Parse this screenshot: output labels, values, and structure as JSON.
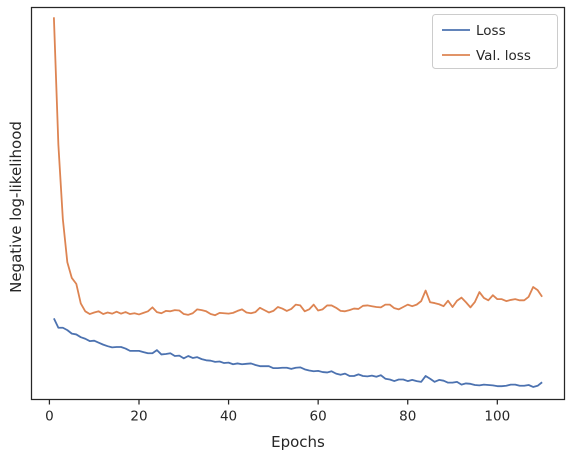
{
  "chart_data": {
    "type": "line",
    "xlabel": "Epochs",
    "ylabel": "Negative log-likelihood",
    "xlim": [
      -4,
      115
    ],
    "ylim": [
      0.0,
      1.0
    ],
    "xticks": [
      0,
      20,
      40,
      60,
      80,
      100
    ],
    "yticks": [],
    "grid": false,
    "legend_position": "top-right",
    "series": [
      {
        "name": "Loss",
        "color": "#4c72b0",
        "x": [
          1,
          2,
          3,
          4,
          5,
          6,
          7,
          8,
          9,
          10,
          11,
          12,
          13,
          14,
          15,
          16,
          17,
          18,
          19,
          20,
          21,
          22,
          23,
          24,
          25,
          26,
          27,
          28,
          29,
          30,
          31,
          32,
          33,
          34,
          35,
          36,
          37,
          38,
          39,
          40,
          41,
          42,
          43,
          44,
          45,
          46,
          47,
          48,
          49,
          50,
          51,
          52,
          53,
          54,
          55,
          56,
          57,
          58,
          59,
          60,
          61,
          62,
          63,
          64,
          65,
          66,
          67,
          68,
          69,
          70,
          71,
          72,
          73,
          74,
          75,
          76,
          77,
          78,
          79,
          80,
          81,
          82,
          83,
          84,
          85,
          86,
          87,
          88,
          89,
          90,
          91,
          92,
          93,
          94,
          95,
          96,
          97,
          98,
          99,
          100,
          101,
          102,
          103,
          104,
          105,
          106,
          107,
          108,
          109,
          110
        ],
        "values": [
          0.207,
          0.183,
          0.183,
          0.177,
          0.168,
          0.166,
          0.159,
          0.155,
          0.149,
          0.15,
          0.145,
          0.14,
          0.136,
          0.133,
          0.134,
          0.134,
          0.13,
          0.124,
          0.124,
          0.124,
          0.121,
          0.118,
          0.118,
          0.126,
          0.115,
          0.116,
          0.118,
          0.111,
          0.112,
          0.105,
          0.111,
          0.106,
          0.108,
          0.103,
          0.1,
          0.099,
          0.096,
          0.097,
          0.093,
          0.094,
          0.09,
          0.092,
          0.09,
          0.091,
          0.092,
          0.088,
          0.085,
          0.085,
          0.085,
          0.08,
          0.08,
          0.081,
          0.081,
          0.078,
          0.081,
          0.082,
          0.077,
          0.074,
          0.072,
          0.073,
          0.07,
          0.069,
          0.072,
          0.066,
          0.063,
          0.066,
          0.06,
          0.06,
          0.064,
          0.06,
          0.059,
          0.061,
          0.058,
          0.062,
          0.053,
          0.051,
          0.047,
          0.051,
          0.051,
          0.047,
          0.05,
          0.047,
          0.045,
          0.06,
          0.053,
          0.045,
          0.05,
          0.048,
          0.043,
          0.043,
          0.045,
          0.038,
          0.041,
          0.04,
          0.037,
          0.036,
          0.038,
          0.037,
          0.036,
          0.034,
          0.034,
          0.035,
          0.038,
          0.038,
          0.035,
          0.035,
          0.037,
          0.032,
          0.035,
          0.044
        ]
      },
      {
        "name": "Val. loss",
        "color": "#dd8452",
        "x": [
          1,
          2,
          3,
          4,
          5,
          6,
          7,
          8,
          9,
          10,
          11,
          12,
          13,
          14,
          15,
          16,
          17,
          18,
          19,
          20,
          21,
          22,
          23,
          24,
          25,
          26,
          27,
          28,
          29,
          30,
          31,
          32,
          33,
          34,
          35,
          36,
          37,
          38,
          39,
          40,
          41,
          42,
          43,
          44,
          45,
          46,
          47,
          48,
          49,
          50,
          51,
          52,
          53,
          54,
          55,
          56,
          57,
          58,
          59,
          60,
          61,
          62,
          63,
          64,
          65,
          66,
          67,
          68,
          69,
          70,
          71,
          72,
          73,
          74,
          75,
          76,
          77,
          78,
          79,
          80,
          81,
          82,
          83,
          84,
          85,
          86,
          87,
          88,
          89,
          90,
          91,
          92,
          93,
          94,
          95,
          96,
          97,
          98,
          99,
          100,
          101,
          102,
          103,
          104,
          105,
          106,
          107,
          108,
          109,
          110
        ],
        "values": [
          0.975,
          0.65,
          0.46,
          0.35,
          0.31,
          0.295,
          0.245,
          0.225,
          0.218,
          0.222,
          0.225,
          0.218,
          0.222,
          0.219,
          0.224,
          0.219,
          0.223,
          0.218,
          0.22,
          0.217,
          0.221,
          0.225,
          0.235,
          0.223,
          0.22,
          0.226,
          0.225,
          0.228,
          0.227,
          0.218,
          0.216,
          0.22,
          0.23,
          0.228,
          0.225,
          0.218,
          0.215,
          0.221,
          0.22,
          0.219,
          0.221,
          0.226,
          0.23,
          0.222,
          0.22,
          0.223,
          0.234,
          0.228,
          0.222,
          0.226,
          0.236,
          0.232,
          0.226,
          0.231,
          0.242,
          0.24,
          0.225,
          0.23,
          0.242,
          0.227,
          0.23,
          0.24,
          0.24,
          0.234,
          0.226,
          0.225,
          0.228,
          0.232,
          0.231,
          0.239,
          0.24,
          0.238,
          0.236,
          0.235,
          0.242,
          0.242,
          0.233,
          0.23,
          0.236,
          0.242,
          0.238,
          0.242,
          0.251,
          0.278,
          0.248,
          0.246,
          0.243,
          0.238,
          0.252,
          0.236,
          0.252,
          0.26,
          0.248,
          0.235,
          0.249,
          0.274,
          0.259,
          0.253,
          0.266,
          0.256,
          0.256,
          0.251,
          0.254,
          0.256,
          0.253,
          0.253,
          0.262,
          0.287,
          0.279,
          0.262
        ]
      }
    ]
  }
}
